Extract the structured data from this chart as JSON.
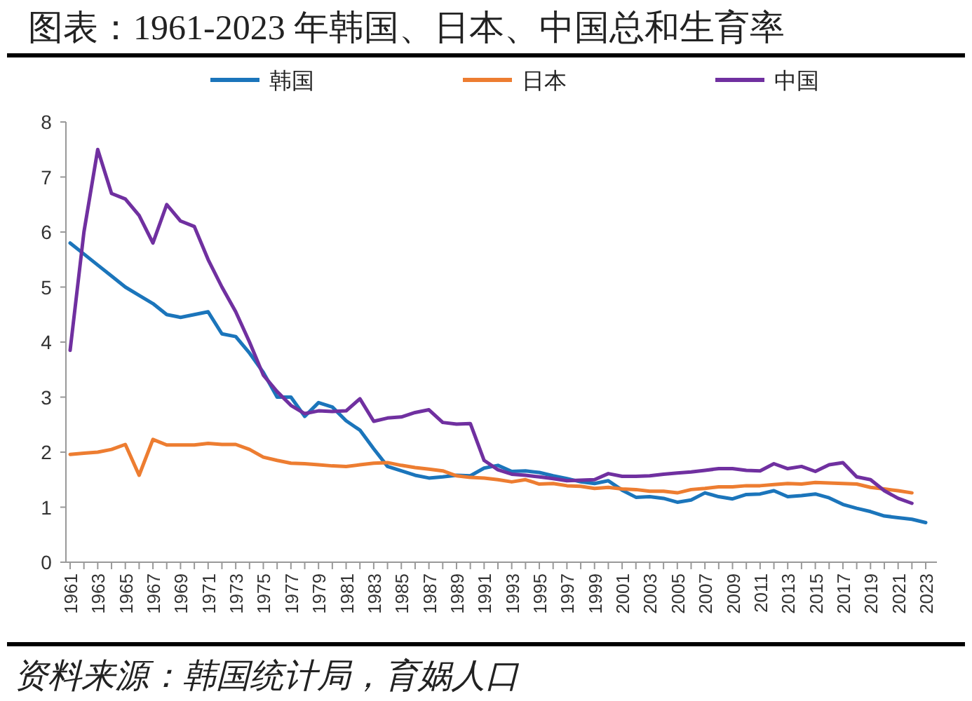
{
  "chart_data": {
    "type": "line",
    "title": "图表：1961-2023 年韩国、日本、中国总和生育率",
    "categories": [
      "1961",
      null,
      "1963",
      null,
      "1965",
      null,
      "1967",
      null,
      "1969",
      null,
      "1971",
      null,
      "1973",
      null,
      "1975",
      null,
      "1977",
      null,
      "1979",
      null,
      "1981",
      null,
      "1983",
      null,
      "1985",
      null,
      "1987",
      null,
      "1989",
      null,
      "1991",
      null,
      "1993",
      null,
      "1995",
      null,
      "1997",
      null,
      "1999",
      null,
      "2001",
      null,
      "2003",
      null,
      "2005",
      null,
      "2007",
      null,
      "2009",
      null,
      "2011",
      null,
      "2013",
      null,
      "2015",
      null,
      "2017",
      null,
      "2019",
      null,
      "2021",
      null,
      "2023"
    ],
    "series": [
      {
        "name": "韩国",
        "color": "#1b75bb",
        "values": [
          5.8,
          5.6,
          5.4,
          5.2,
          5.0,
          4.85,
          4.7,
          4.5,
          4.45,
          4.5,
          4.55,
          4.15,
          4.1,
          3.8,
          3.45,
          3.0,
          3.0,
          2.65,
          2.9,
          2.82,
          2.57,
          2.4,
          2.06,
          1.74,
          1.66,
          1.58,
          1.53,
          1.55,
          1.58,
          1.57,
          1.71,
          1.76,
          1.65,
          1.66,
          1.63,
          1.57,
          1.52,
          1.46,
          1.43,
          1.48,
          1.31,
          1.18,
          1.19,
          1.16,
          1.09,
          1.13,
          1.26,
          1.19,
          1.15,
          1.23,
          1.24,
          1.3,
          1.19,
          1.21,
          1.24,
          1.17,
          1.05,
          0.98,
          0.92,
          0.84,
          0.81,
          0.78,
          0.72
        ]
      },
      {
        "name": "日本",
        "color": "#ed7d31",
        "values": [
          1.96,
          1.98,
          2.0,
          2.05,
          2.14,
          1.58,
          2.23,
          2.13,
          2.13,
          2.13,
          2.16,
          2.14,
          2.14,
          2.05,
          1.91,
          1.85,
          1.8,
          1.79,
          1.77,
          1.75,
          1.74,
          1.77,
          1.8,
          1.81,
          1.76,
          1.72,
          1.69,
          1.66,
          1.57,
          1.54,
          1.53,
          1.5,
          1.46,
          1.5,
          1.42,
          1.43,
          1.39,
          1.38,
          1.34,
          1.36,
          1.33,
          1.32,
          1.29,
          1.29,
          1.26,
          1.32,
          1.34,
          1.37,
          1.37,
          1.39,
          1.39,
          1.41,
          1.43,
          1.42,
          1.45,
          1.44,
          1.43,
          1.42,
          1.36,
          1.33,
          1.3,
          1.26,
          null
        ]
      },
      {
        "name": "中国",
        "color": "#7030a0",
        "values": [
          3.85,
          6.0,
          7.5,
          6.7,
          6.6,
          6.3,
          5.8,
          6.5,
          6.2,
          6.1,
          5.5,
          5.0,
          4.55,
          4.0,
          3.4,
          3.1,
          2.85,
          2.7,
          2.75,
          2.74,
          2.75,
          2.97,
          2.56,
          2.62,
          2.64,
          2.72,
          2.77,
          2.54,
          2.51,
          2.52,
          1.85,
          1.68,
          1.6,
          1.58,
          1.55,
          1.52,
          1.48,
          1.49,
          1.5,
          1.61,
          1.56,
          1.56,
          1.57,
          1.6,
          1.62,
          1.64,
          1.67,
          1.7,
          1.7,
          1.67,
          1.66,
          1.79,
          1.7,
          1.74,
          1.65,
          1.77,
          1.81,
          1.55,
          1.5,
          1.3,
          1.16,
          1.07,
          null
        ]
      }
    ],
    "ylim": [
      0,
      8
    ],
    "yticks": [
      0,
      1,
      2,
      3,
      4,
      5,
      6,
      7,
      8
    ],
    "legend": "top",
    "grid": false,
    "annotations": [
      "资料来源：韩国统计局，育娲人口"
    ]
  }
}
